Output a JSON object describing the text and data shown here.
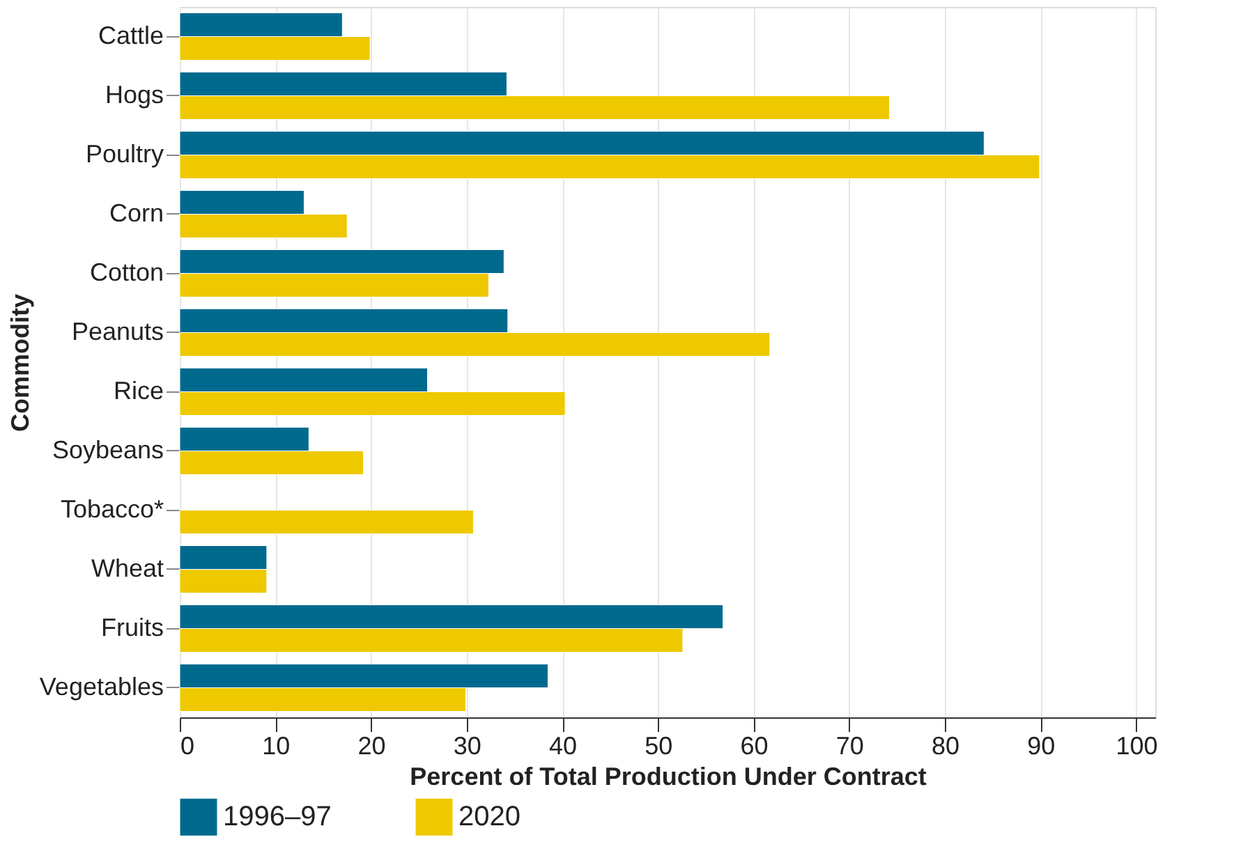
{
  "chart_data": {
    "type": "bar",
    "orientation": "horizontal",
    "ylabel": "Commodity",
    "xlabel": "Percent of Total Production Under Contract",
    "categories": [
      "Cattle",
      "Hogs",
      "Poultry",
      "Corn",
      "Cotton",
      "Peanuts",
      "Rice",
      "Soybeans",
      "Tobacco*",
      "Wheat",
      "Fruits",
      "Vegetables"
    ],
    "series": [
      {
        "name": "1996–97",
        "color": "#006a8e",
        "values": [
          17.0,
          34.2,
          84.1,
          13.0,
          33.9,
          34.3,
          25.9,
          13.5,
          null,
          9.1,
          56.8,
          38.5
        ]
      },
      {
        "name": "2020",
        "color": "#eec900",
        "values": [
          19.9,
          74.2,
          89.9,
          17.5,
          32.3,
          61.7,
          40.3,
          19.2,
          30.7,
          9.1,
          52.6,
          29.9
        ]
      }
    ],
    "xlim": [
      0,
      102
    ],
    "xticks": [
      0,
      10,
      20,
      30,
      40,
      50,
      60,
      70,
      80,
      90,
      100
    ],
    "grid": "x",
    "legend": "bottom"
  }
}
